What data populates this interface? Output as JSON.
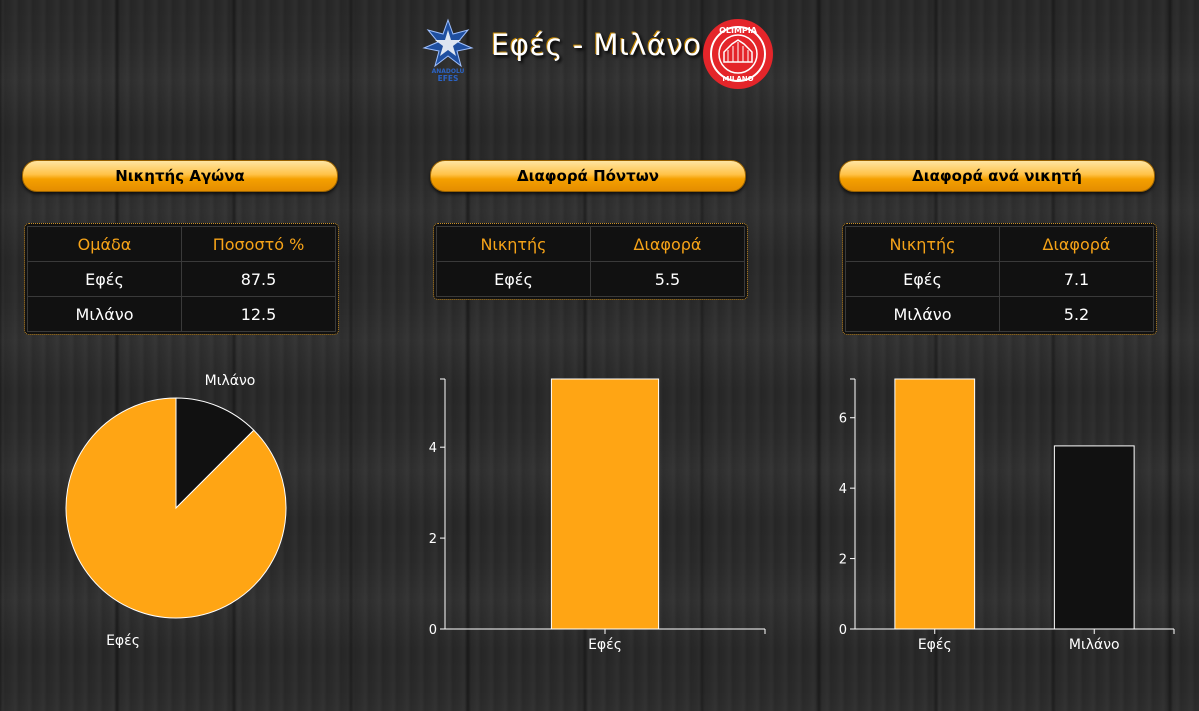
{
  "header": {
    "title": "Εφές - Μιλάνο",
    "logo_left_text": [
      "ANADOLU",
      "EFES"
    ],
    "logo_right_text": [
      "OLIMPIA",
      "MILANO"
    ]
  },
  "colors": {
    "accent": "#FFA514",
    "dark": "#111111",
    "header_text": "#F6A318"
  },
  "panels": [
    {
      "title": "Νικητής Αγώνα",
      "columns": [
        "Ομάδα",
        "Ποσοστό %"
      ],
      "rows": [
        [
          "Εφές",
          "87.5"
        ],
        [
          "Μιλάνο",
          "12.5"
        ]
      ]
    },
    {
      "title": "Διαφορά Πόντων",
      "columns": [
        "Νικητής",
        "Διαφορά"
      ],
      "rows": [
        [
          "Εφές",
          "5.5"
        ]
      ]
    },
    {
      "title": "Διαφορά ανά νικητή",
      "columns": [
        "Νικητής",
        "Διαφορά"
      ],
      "rows": [
        [
          "Εφές",
          "7.1"
        ],
        [
          "Μιλάνο",
          "5.2"
        ]
      ]
    }
  ],
  "chart_data": [
    {
      "type": "pie",
      "title": "",
      "labels": [
        "Εφές",
        "Μιλάνο"
      ],
      "values": [
        87.5,
        12.5
      ],
      "colors": [
        "#FFA514",
        "#111111"
      ]
    },
    {
      "type": "bar",
      "title": "",
      "categories": [
        "Εφές"
      ],
      "values": [
        5.5
      ],
      "colors": [
        "#FFA514"
      ],
      "ylim": [
        0,
        5.5
      ],
      "yticks": [
        0,
        2,
        4
      ],
      "xlabel": "",
      "ylabel": ""
    },
    {
      "type": "bar",
      "title": "",
      "categories": [
        "Εφές",
        "Μιλάνο"
      ],
      "values": [
        7.1,
        5.2
      ],
      "colors": [
        "#FFA514",
        "#111111"
      ],
      "ylim": [
        0,
        7.1
      ],
      "yticks": [
        0,
        2,
        4,
        6
      ],
      "xlabel": "",
      "ylabel": ""
    }
  ]
}
